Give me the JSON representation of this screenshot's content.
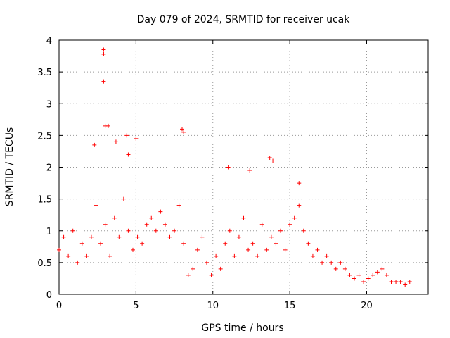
{
  "chart_data": {
    "type": "scatter",
    "title": "Day 079 of 2024, SRMTID for receiver ucak",
    "xlabel": "GPS time / hours",
    "ylabel": "SRMTID / TECUs",
    "xlim": [
      0,
      24
    ],
    "ylim": [
      0,
      4
    ],
    "xticks": [
      0,
      5,
      10,
      15,
      20
    ],
    "xtick_labels": [
      "0",
      "5",
      "10",
      "15",
      "20"
    ],
    "yticks": [
      0,
      0.5,
      1,
      1.5,
      2,
      2.5,
      3,
      3.5,
      4
    ],
    "ytick_labels": [
      "0",
      "0.5",
      "1",
      "1.5",
      "2",
      "2.5",
      "3",
      "3.5",
      "4"
    ],
    "grid": true,
    "marker": "+",
    "color": "#ff0000",
    "series": [
      {
        "name": "SRMTID",
        "x": [
          0.0,
          0.3,
          0.6,
          0.9,
          1.2,
          1.5,
          1.8,
          2.1,
          2.4,
          2.7,
          3.0,
          3.3,
          3.6,
          3.9,
          4.2,
          4.5,
          4.8,
          5.1,
          5.4,
          5.7,
          6.0,
          6.3,
          6.6,
          6.9,
          7.2,
          7.5,
          7.8,
          8.1,
          8.4,
          8.7,
          9.0,
          9.3,
          9.6,
          9.9,
          10.2,
          10.5,
          10.8,
          11.1,
          11.4,
          11.7,
          12.0,
          12.3,
          12.6,
          12.9,
          13.2,
          13.5,
          13.8,
          14.1,
          14.4,
          14.7,
          15.0,
          15.3,
          15.6,
          15.9,
          16.2,
          16.5,
          16.8,
          17.1,
          17.4,
          17.7,
          18.0,
          18.3,
          18.6,
          18.9,
          19.2,
          19.5,
          19.8,
          20.1,
          20.4,
          20.7,
          21.0,
          21.3,
          21.6,
          21.9,
          22.2,
          22.5,
          22.8,
          2.9,
          2.9,
          2.9,
          4.4,
          4.5,
          8.0,
          8.1,
          3.0,
          3.2,
          12.4,
          13.7,
          13.9,
          15.6,
          3.7,
          5.0,
          2.3,
          11.0
        ],
        "y": [
          0.7,
          0.9,
          0.6,
          1.0,
          0.5,
          0.8,
          0.6,
          0.9,
          1.4,
          0.8,
          1.1,
          0.6,
          1.2,
          0.9,
          1.5,
          1.0,
          0.7,
          0.9,
          0.8,
          1.1,
          1.2,
          1.0,
          1.3,
          1.1,
          0.9,
          1.0,
          1.4,
          0.8,
          0.3,
          0.4,
          0.7,
          0.9,
          0.5,
          0.3,
          0.6,
          0.4,
          0.8,
          1.0,
          0.6,
          0.9,
          1.2,
          0.7,
          0.8,
          0.6,
          1.1,
          0.7,
          0.9,
          0.8,
          1.0,
          0.7,
          1.1,
          1.2,
          1.4,
          1.0,
          0.8,
          0.6,
          0.7,
          0.5,
          0.6,
          0.5,
          0.4,
          0.5,
          0.4,
          0.3,
          0.25,
          0.3,
          0.2,
          0.25,
          0.3,
          0.35,
          0.4,
          0.3,
          0.2,
          0.2,
          0.2,
          0.15,
          0.2,
          3.85,
          3.78,
          3.35,
          2.5,
          2.2,
          2.6,
          2.55,
          2.65,
          2.65,
          1.95,
          2.15,
          2.1,
          1.75,
          2.4,
          2.45,
          2.35,
          2.0
        ]
      }
    ]
  }
}
